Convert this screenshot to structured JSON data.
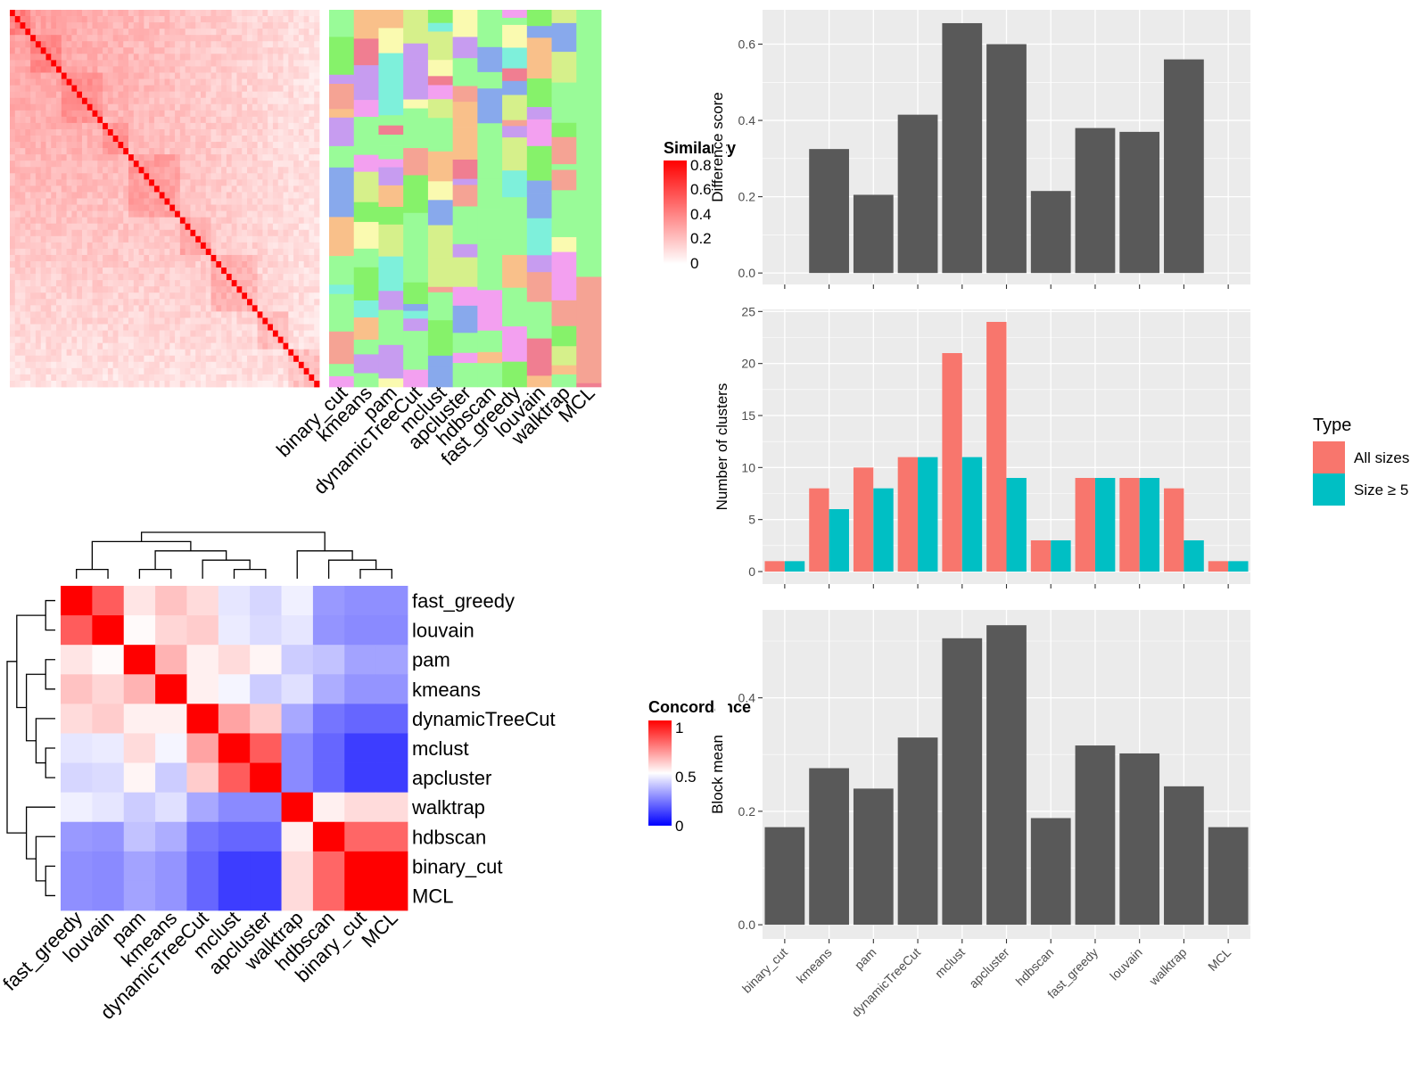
{
  "colors": {
    "panel_bg": "#ebebeb",
    "grid": "#ffffff",
    "bar_dark": "#595959",
    "all_sizes": "#f8766d",
    "size_ge_5": "#00bfc4",
    "sim_high": "#ff0000",
    "sim_low": "#ffffff",
    "conc_high": "#ff0000",
    "conc_mid": "#ffffff",
    "conc_low": "#0000ff"
  },
  "top_heatmap": {
    "column_labels": [
      "binary_cut",
      "kmeans",
      "pam",
      "dynamicTreeCut",
      "mclust",
      "apcluster",
      "hdbscan",
      "fast_greedy",
      "louvain",
      "walktrap",
      "MCL"
    ],
    "legend_title": "Similarity",
    "legend_ticks": [
      "0.8",
      "0.6",
      "0.4",
      "0.2",
      "0"
    ]
  },
  "concordance_heatmap": {
    "labels": [
      "fast_greedy",
      "louvain",
      "pam",
      "kmeans",
      "dynamicTreeCut",
      "mclust",
      "apcluster",
      "walktrap",
      "hdbscan",
      "binary_cut",
      "MCL"
    ],
    "matrix": [
      [
        1.0,
        0.82,
        0.55,
        0.62,
        0.57,
        0.45,
        0.42,
        0.47,
        0.3,
        0.28,
        0.28
      ],
      [
        0.82,
        1.0,
        0.51,
        0.58,
        0.6,
        0.46,
        0.43,
        0.45,
        0.29,
        0.27,
        0.27
      ],
      [
        0.55,
        0.51,
        1.0,
        0.65,
        0.53,
        0.57,
        0.52,
        0.4,
        0.38,
        0.32,
        0.32
      ],
      [
        0.62,
        0.58,
        0.65,
        1.0,
        0.53,
        0.48,
        0.4,
        0.44,
        0.34,
        0.29,
        0.29
      ],
      [
        0.57,
        0.6,
        0.53,
        0.53,
        1.0,
        0.68,
        0.6,
        0.33,
        0.23,
        0.2,
        0.2
      ],
      [
        0.45,
        0.46,
        0.57,
        0.48,
        0.68,
        1.0,
        0.82,
        0.27,
        0.2,
        0.12,
        0.12
      ],
      [
        0.42,
        0.43,
        0.52,
        0.4,
        0.6,
        0.82,
        1.0,
        0.27,
        0.2,
        0.12,
        0.12
      ],
      [
        0.47,
        0.45,
        0.4,
        0.44,
        0.33,
        0.27,
        0.27,
        1.0,
        0.53,
        0.57,
        0.57
      ],
      [
        0.3,
        0.29,
        0.38,
        0.34,
        0.23,
        0.2,
        0.2,
        0.53,
        1.0,
        0.8,
        0.8
      ],
      [
        0.28,
        0.27,
        0.32,
        0.29,
        0.2,
        0.12,
        0.12,
        0.57,
        0.8,
        1.0,
        1.0
      ],
      [
        0.28,
        0.27,
        0.32,
        0.29,
        0.2,
        0.12,
        0.12,
        0.57,
        0.8,
        1.0,
        1.0
      ]
    ],
    "legend_title": "Concordance",
    "legend_ticks": [
      "1",
      "0.5",
      "0"
    ]
  },
  "chart_data": [
    {
      "type": "bar",
      "categories": [
        "binary_cut",
        "kmeans",
        "pam",
        "dynamicTreeCut",
        "mclust",
        "apcluster",
        "hdbscan",
        "fast_greedy",
        "louvain",
        "walktrap",
        "MCL"
      ],
      "values": [
        0.0,
        0.325,
        0.205,
        0.415,
        0.655,
        0.6,
        0.215,
        0.38,
        0.37,
        0.56,
        0.0
      ],
      "ylabel": "Difference score",
      "ylim": [
        -0.03,
        0.69
      ],
      "yticks": [
        0.0,
        0.2,
        0.4,
        0.6
      ],
      "ytick_labels": [
        "0.0",
        "0.2",
        "0.4",
        "0.6"
      ]
    },
    {
      "type": "bar",
      "categories": [
        "binary_cut",
        "kmeans",
        "pam",
        "dynamicTreeCut",
        "mclust",
        "apcluster",
        "hdbscan",
        "fast_greedy",
        "louvain",
        "walktrap",
        "MCL"
      ],
      "series": [
        {
          "name": "All sizes",
          "values": [
            1,
            8,
            10,
            11,
            21,
            24,
            3,
            9,
            9,
            8,
            1
          ]
        },
        {
          "name": "Size ≥ 5",
          "values": [
            1,
            6,
            8,
            11,
            11,
            9,
            3,
            9,
            9,
            3,
            1
          ]
        }
      ],
      "ylabel": "Number of clusters",
      "ylim": [
        -1.2,
        25.2
      ],
      "yticks": [
        0,
        5,
        10,
        15,
        20,
        25
      ],
      "ytick_labels": [
        "0",
        "5",
        "10",
        "15",
        "20",
        "25"
      ],
      "legend": {
        "title": "Type",
        "position": "right"
      }
    },
    {
      "type": "bar",
      "categories": [
        "binary_cut",
        "kmeans",
        "pam",
        "dynamicTreeCut",
        "mclust",
        "apcluster",
        "hdbscan",
        "fast_greedy",
        "louvain",
        "walktrap",
        "MCL"
      ],
      "values": [
        0.172,
        0.276,
        0.24,
        0.33,
        0.505,
        0.528,
        0.188,
        0.316,
        0.302,
        0.244,
        0.172
      ],
      "ylabel": "Block mean",
      "ylim": [
        -0.025,
        0.555
      ],
      "yticks": [
        0.0,
        0.2,
        0.4
      ],
      "ytick_labels": [
        "0.0",
        "0.2",
        "0.4"
      ]
    }
  ]
}
